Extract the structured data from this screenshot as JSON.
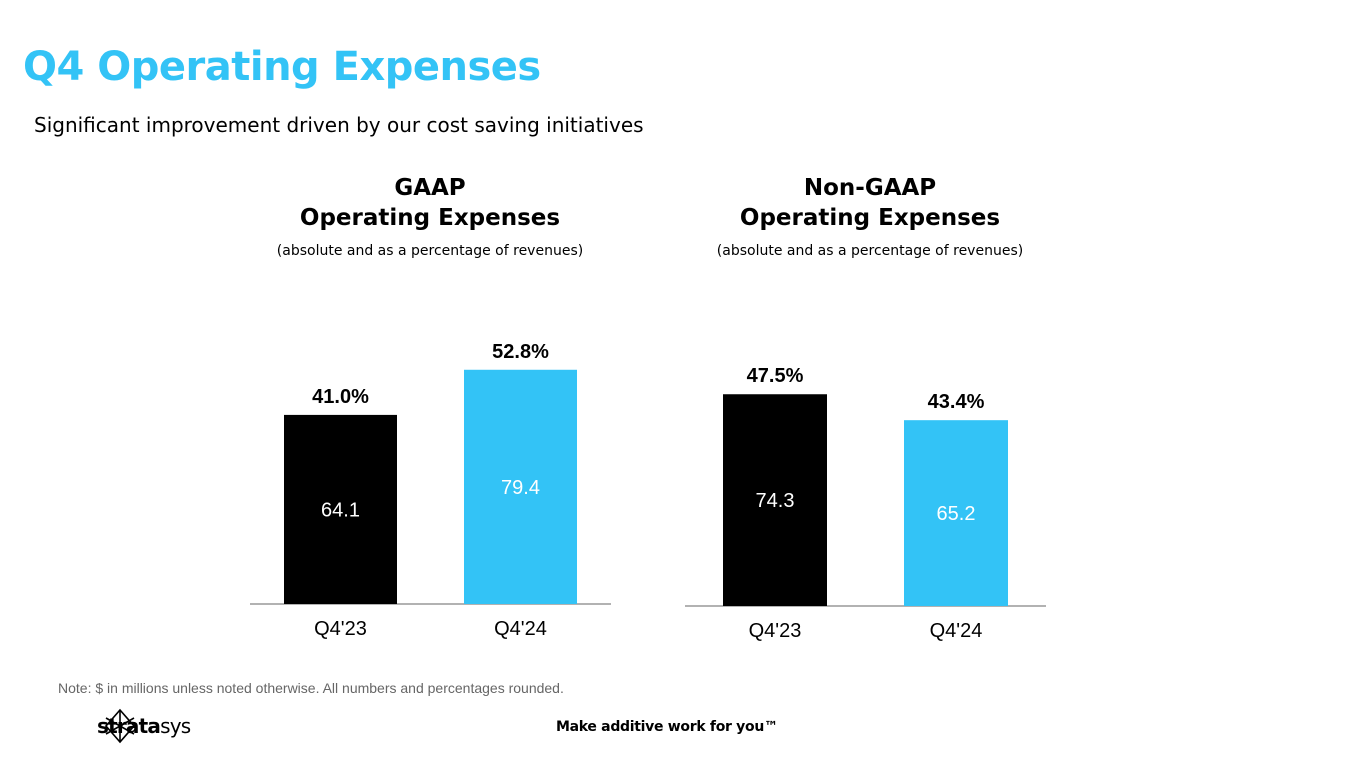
{
  "page": {
    "title": "Q4 Operating Expenses",
    "subtitle": "Significant improvement driven by our cost saving initiatives",
    "note": "Note: $ in millions unless noted otherwise. All numbers and percentages rounded.",
    "tagline": "Make additive work for you™",
    "logo": {
      "bold": "strata",
      "light": "sys",
      "icon": "stratasys-logo-icon"
    }
  },
  "colors": {
    "accent": "#33c3f6",
    "dark": "#000000",
    "axis": "#666666"
  },
  "charts": [
    {
      "heading_line1": "GAAP",
      "heading_line2": "Operating Expenses",
      "caption": "(absolute and as a percentage of revenues)"
    },
    {
      "heading_line1": "Non-GAAP",
      "heading_line2": "Operating Expenses",
      "caption": "(absolute and as a percentage of revenues)"
    }
  ],
  "chart_data": [
    {
      "type": "bar",
      "title": "GAAP Operating Expenses",
      "categories": [
        "Q4'23",
        "Q4'24"
      ],
      "values": [
        64.1,
        79.4
      ],
      "value_labels": [
        "64.1",
        "79.4"
      ],
      "percent_labels": [
        "41.0%",
        "52.8%"
      ],
      "percent_values": [
        41.0,
        52.8
      ],
      "bar_colors": [
        "#000000",
        "#33c3f6"
      ],
      "value_label_colors": [
        "#ffffff",
        "#ffffff"
      ],
      "ylim": [
        0,
        80
      ],
      "grid": false
    },
    {
      "type": "bar",
      "title": "Non-GAAP Operating Expenses",
      "categories": [
        "Q4'23",
        "Q4'24"
      ],
      "values": [
        74.3,
        65.2
      ],
      "value_labels": [
        "74.3",
        "65.2"
      ],
      "percent_labels": [
        "47.5%",
        "43.4%"
      ],
      "percent_values": [
        47.5,
        43.4
      ],
      "bar_colors": [
        "#000000",
        "#33c3f6"
      ],
      "value_label_colors": [
        "#ffffff",
        "#ffffff"
      ],
      "ylim": [
        0,
        80
      ],
      "grid": false
    }
  ]
}
